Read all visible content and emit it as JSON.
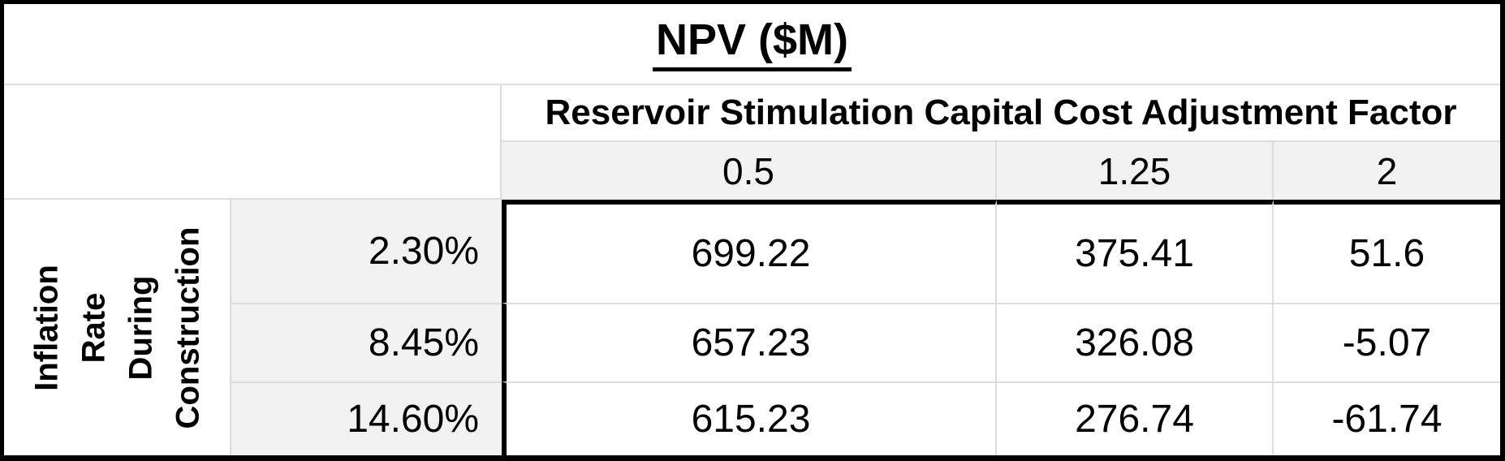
{
  "table": {
    "title": "NPV ($M)",
    "factor_header": "Reservoir Stimulation Capital Cost Adjustment Factor",
    "factor_values": [
      "0.5",
      "1.25",
      "2"
    ],
    "row_axis_label": "Inflation Rate During Construction",
    "row_axis_label_multiline": "Inflation\nRate\nDuring\nConstruction",
    "inflation_values": [
      "2.30%",
      "8.45%",
      "14.60%"
    ],
    "npv": [
      [
        "699.22",
        "375.41",
        "51.6"
      ],
      [
        "657.23",
        "326.08",
        "-5.07"
      ],
      [
        "615.23",
        "276.74",
        "-61.74"
      ]
    ]
  },
  "colors": {
    "border_black": "#000000",
    "gridline": "#dcdcdc",
    "header_fill": "#f2f2f2",
    "text": "#000000",
    "background": "#ffffff"
  },
  "chart_data": {
    "type": "table",
    "title": "NPV ($M)",
    "x_axis": {
      "label": "Reservoir Stimulation Capital Cost Adjustment Factor",
      "values": [
        0.5,
        1.25,
        2
      ]
    },
    "y_axis": {
      "label": "Inflation Rate During Construction",
      "values": [
        "2.30%",
        "8.45%",
        "14.60%"
      ]
    },
    "rows": [
      [
        699.22,
        375.41,
        51.6
      ],
      [
        657.23,
        326.08,
        -5.07
      ],
      [
        615.23,
        276.74,
        -61.74
      ]
    ]
  }
}
